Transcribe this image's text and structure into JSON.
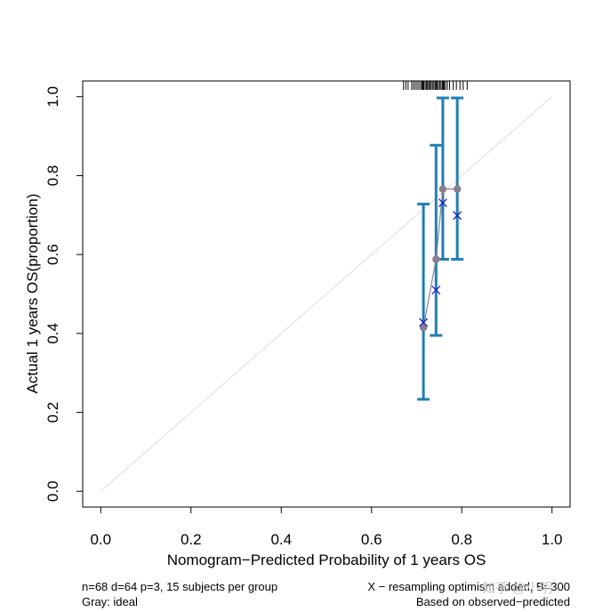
{
  "chart_data": {
    "type": "calibration",
    "xlabel": "Nomogram−Predicted Probability of 1 years OS",
    "ylabel": "Actual 1 years OS(proportion)",
    "xlim": [
      -0.04,
      1.04
    ],
    "ylim": [
      -0.04,
      1.04
    ],
    "x_ticks": [
      0.0,
      0.2,
      0.4,
      0.6,
      0.8,
      1.0
    ],
    "x_tick_labels": [
      "0.0",
      "0.2",
      "0.4",
      "0.6",
      "0.8",
      "1.0"
    ],
    "y_ticks": [
      0.0,
      0.2,
      0.4,
      0.6,
      0.8,
      1.0
    ],
    "y_tick_labels": [
      "0.0",
      "0.2",
      "0.4",
      "0.6",
      "0.8",
      "1.0"
    ],
    "ideal_line": {
      "x": [
        0,
        1
      ],
      "y": [
        0,
        1
      ],
      "color": "#dcdcdc"
    },
    "observed": {
      "x": [
        0.715,
        0.743,
        0.758,
        0.79
      ],
      "y": [
        0.415,
        0.588,
        0.766,
        0.766
      ],
      "color": "#8b7f8f"
    },
    "error_bars": {
      "x": [
        0.715,
        0.743,
        0.758,
        0.79
      ],
      "lower": [
        0.233,
        0.395,
        0.588,
        0.588
      ],
      "upper": [
        0.728,
        0.877,
        0.997,
        0.997
      ],
      "color": "#1f7fb4"
    },
    "bias_corrected": {
      "x": [
        0.715,
        0.743,
        0.758,
        0.79
      ],
      "y": [
        0.428,
        0.51,
        0.731,
        0.699
      ],
      "color": "#1a1acc"
    },
    "rug": [
      0.671,
      0.676,
      0.681,
      0.689,
      0.693,
      0.697,
      0.701,
      0.705,
      0.709,
      0.712,
      0.714,
      0.716,
      0.719,
      0.722,
      0.724,
      0.727,
      0.729,
      0.732,
      0.735,
      0.738,
      0.741,
      0.743,
      0.745,
      0.748,
      0.751,
      0.754,
      0.757,
      0.759,
      0.761,
      0.764,
      0.768,
      0.773,
      0.781,
      0.788,
      0.796,
      0.803,
      0.812
    ]
  },
  "footer": {
    "left_line1": "n=68 d=64 p=3, 15 subjects per group",
    "left_line2": "Gray: ideal",
    "right_line1": "X − resampling optimism added, B=300",
    "right_line2": "Based on observed−predicted"
  },
  "watermark": "知乎 @小明"
}
